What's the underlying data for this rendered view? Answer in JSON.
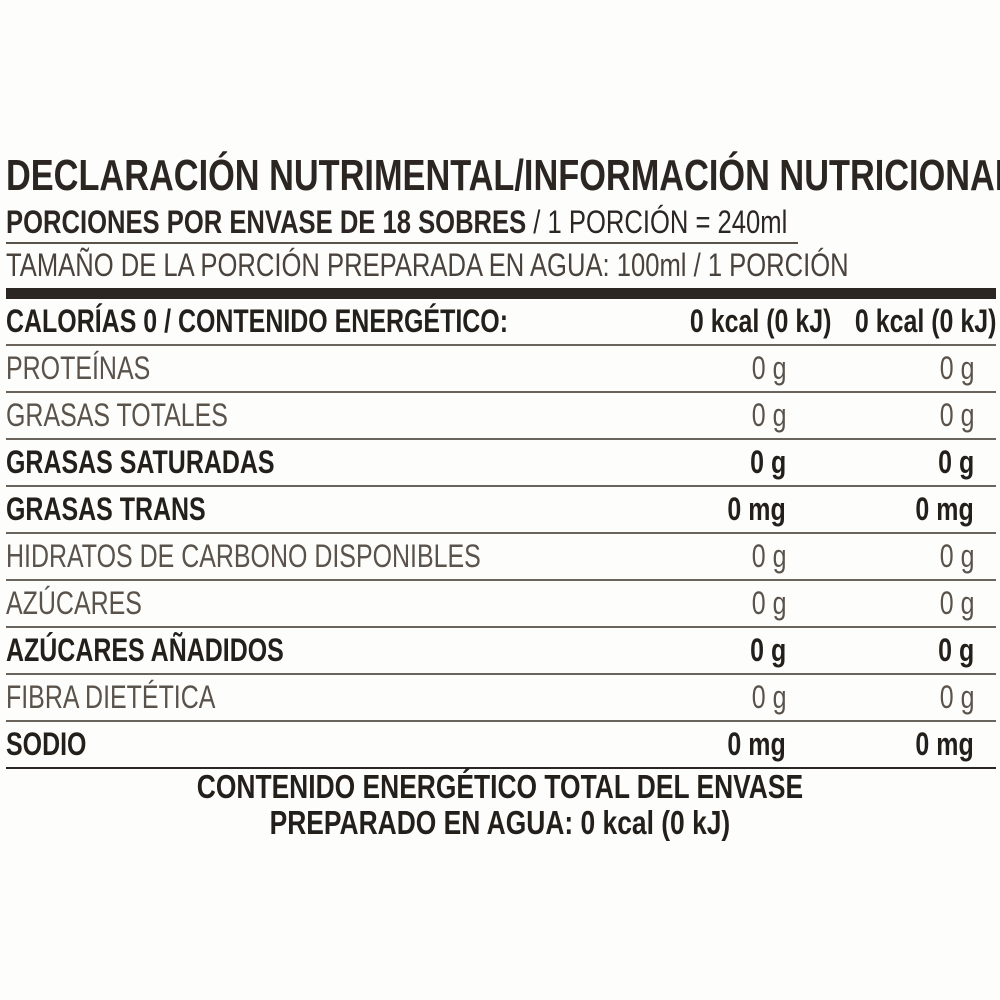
{
  "header": {
    "title": "DECLARACIÓN NUTRIMENTAL/INFORMACIÓN NUTRICIONAL",
    "servings_bold": "PORCIONES POR ENVASE DE 18 SOBRES",
    "servings_regular": " / 1 PORCIÓN = 240ml",
    "serving_size": "TAMAÑO DE LA PORCIÓN PREPARADA EN AGUA: 100ml / 1 PORCIÓN"
  },
  "energy": {
    "label": "CALORÍAS 0 / CONTENIDO ENERGÉTICO:",
    "value_100ml": "0 kcal (0 kJ)",
    "value_portion": "0 kcal (0 kJ)"
  },
  "nutrients": [
    {
      "name": "PROTEÍNAS",
      "v1": "0 g",
      "v2": "0 g"
    },
    {
      "name": "GRASAS TOTALES",
      "v1": "0 g",
      "v2": "0 g"
    },
    {
      "name": "GRASAS SATURADAS",
      "v1": "0 g",
      "v2": "0 g"
    },
    {
      "name": "GRASAS TRANS",
      "v1": "0 mg",
      "v2": "0 mg"
    },
    {
      "name": "HIDRATOS DE CARBONO DISPONIBLES",
      "v1": "0 g",
      "v2": "0 g"
    },
    {
      "name": "AZÚCARES",
      "v1": "0 g",
      "v2": "0 g"
    },
    {
      "name": "AZÚCARES AÑADIDOS",
      "v1": "0 g",
      "v2": "0 g"
    },
    {
      "name": "FIBRA DIETÉTICA",
      "v1": "0 g",
      "v2": "0 g"
    },
    {
      "name": "SODIO",
      "v1": "0 mg",
      "v2": "0 mg"
    }
  ],
  "footer": {
    "line1": "CONTENIDO ENERGÉTICO TOTAL DEL ENVASE",
    "line2": "PREPARADO EN AGUA: 0 kcal (0 kJ)"
  },
  "colors": {
    "ink": "#2b2622",
    "background": "#fdfdfb"
  }
}
